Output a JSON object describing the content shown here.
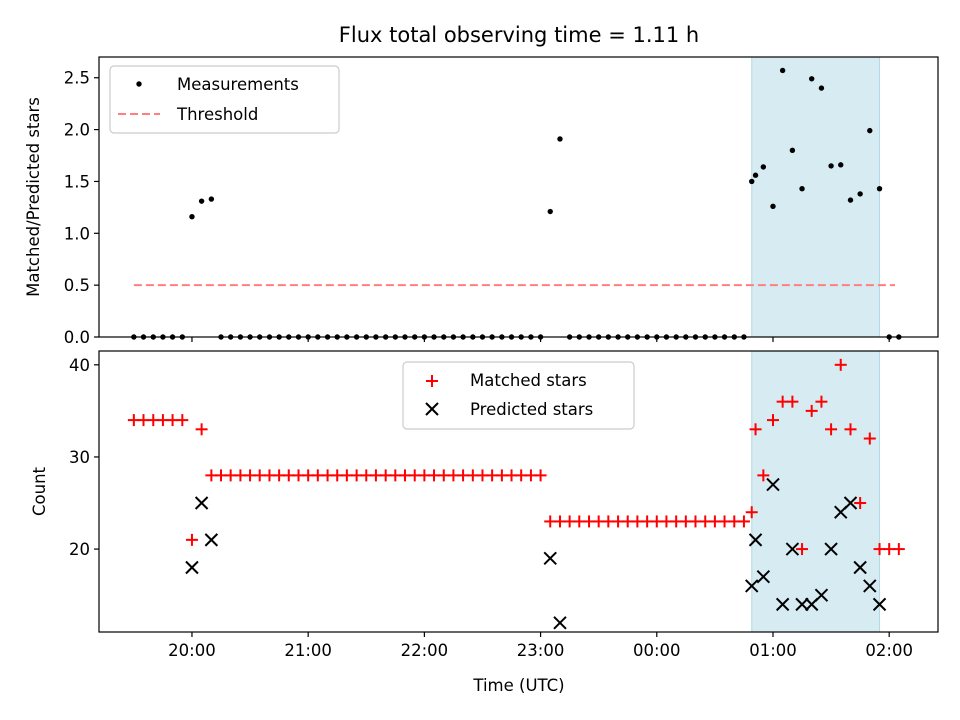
{
  "colors": {
    "measurement": "#000000",
    "threshold": "#ff7f7f",
    "matched": "#ff0000",
    "predicted": "#000000",
    "highlight": "#add8e6"
  },
  "chart_data": [
    {
      "type": "scatter",
      "title": "Flux total observing time = 1.11 h",
      "xlabel": "",
      "ylabel": "Matched/Predicted stars",
      "x_unit": "hours UTC (values past 24 are after midnight)",
      "xlim": [
        19.2,
        26.42
      ],
      "ylim": [
        0,
        2.7
      ],
      "yticks": [
        0.0,
        0.5,
        1.0,
        1.5,
        2.0,
        2.5
      ],
      "ytick_labels": [
        "0.0",
        "0.5",
        "1.0",
        "1.5",
        "2.0",
        "2.5"
      ],
      "xticks": [
        20,
        21,
        22,
        23,
        24,
        25,
        26
      ],
      "xtick_labels": [],
      "shaded_region": [
        24.817,
        25.917
      ],
      "legend": {
        "location": "upper-left",
        "entries": [
          "Measurements",
          "Threshold"
        ]
      },
      "series": [
        {
          "name": "Measurements",
          "marker": "dot",
          "points": [
            [
              19.5,
              0
            ],
            [
              19.583,
              0
            ],
            [
              19.667,
              0
            ],
            [
              19.75,
              0
            ],
            [
              19.833,
              0
            ],
            [
              19.917,
              0
            ],
            [
              20.0,
              1.16
            ],
            [
              20.083,
              1.31
            ],
            [
              20.167,
              1.33
            ],
            [
              20.25,
              0
            ],
            [
              20.333,
              0
            ],
            [
              20.417,
              0
            ],
            [
              20.5,
              0
            ],
            [
              20.583,
              0
            ],
            [
              20.667,
              0
            ],
            [
              20.75,
              0
            ],
            [
              20.833,
              0
            ],
            [
              20.917,
              0
            ],
            [
              21.0,
              0
            ],
            [
              21.083,
              0
            ],
            [
              21.167,
              0
            ],
            [
              21.25,
              0
            ],
            [
              21.333,
              0
            ],
            [
              21.417,
              0
            ],
            [
              21.5,
              0
            ],
            [
              21.583,
              0
            ],
            [
              21.667,
              0
            ],
            [
              21.75,
              0
            ],
            [
              21.833,
              0
            ],
            [
              21.917,
              0
            ],
            [
              22.0,
              0
            ],
            [
              22.083,
              0
            ],
            [
              22.167,
              0
            ],
            [
              22.25,
              0
            ],
            [
              22.333,
              0
            ],
            [
              22.417,
              0
            ],
            [
              22.5,
              0
            ],
            [
              22.583,
              0
            ],
            [
              22.667,
              0
            ],
            [
              22.75,
              0
            ],
            [
              22.833,
              0
            ],
            [
              22.917,
              0
            ],
            [
              23.0,
              0
            ],
            [
              23.083,
              1.21
            ],
            [
              23.167,
              1.91
            ],
            [
              23.25,
              0
            ],
            [
              23.333,
              0
            ],
            [
              23.417,
              0
            ],
            [
              23.5,
              0
            ],
            [
              23.583,
              0
            ],
            [
              23.667,
              0
            ],
            [
              23.75,
              0
            ],
            [
              23.833,
              0
            ],
            [
              23.917,
              0
            ],
            [
              24.0,
              0
            ],
            [
              24.083,
              0
            ],
            [
              24.167,
              0
            ],
            [
              24.25,
              0
            ],
            [
              24.333,
              0
            ],
            [
              24.417,
              0
            ],
            [
              24.5,
              0
            ],
            [
              24.583,
              0
            ],
            [
              24.667,
              0
            ],
            [
              24.75,
              0
            ],
            [
              24.817,
              1.5
            ],
            [
              24.85,
              1.56
            ],
            [
              24.917,
              1.64
            ],
            [
              25.0,
              1.26
            ],
            [
              25.083,
              2.57
            ],
            [
              25.167,
              1.8
            ],
            [
              25.25,
              1.43
            ],
            [
              25.333,
              2.49
            ],
            [
              25.417,
              2.4
            ],
            [
              25.5,
              1.65
            ],
            [
              25.583,
              1.66
            ],
            [
              25.667,
              1.32
            ],
            [
              25.75,
              1.38
            ],
            [
              25.833,
              1.99
            ],
            [
              25.917,
              1.43
            ],
            [
              26.0,
              0
            ],
            [
              26.083,
              0
            ]
          ]
        },
        {
          "name": "Threshold",
          "style": "dashed-line",
          "points": [
            [
              19.5,
              0.5
            ],
            [
              26.05,
              0.5
            ]
          ]
        }
      ]
    },
    {
      "type": "scatter",
      "title": "",
      "xlabel": "Time (UTC)",
      "ylabel": "Count",
      "x_unit": "hours UTC (values past 24 are after midnight)",
      "xlim": [
        19.2,
        26.42
      ],
      "ylim": [
        11,
        41.5
      ],
      "yticks": [
        20,
        30,
        40
      ],
      "ytick_labels": [
        "20",
        "30",
        "40"
      ],
      "xticks": [
        20,
        21,
        22,
        23,
        24,
        25,
        26
      ],
      "xtick_labels": [
        "20:00",
        "21:00",
        "22:00",
        "23:00",
        "00:00",
        "01:00",
        "02:00"
      ],
      "shaded_region": [
        24.817,
        25.917
      ],
      "legend": {
        "location": "upper-center",
        "entries": [
          "Matched stars",
          "Predicted stars"
        ]
      },
      "series": [
        {
          "name": "Matched stars",
          "marker": "plus",
          "points": [
            [
              19.5,
              34
            ],
            [
              19.583,
              34
            ],
            [
              19.667,
              34
            ],
            [
              19.75,
              34
            ],
            [
              19.833,
              34
            ],
            [
              19.917,
              34
            ],
            [
              20.0,
              21
            ],
            [
              20.083,
              33
            ],
            [
              20.167,
              28
            ],
            [
              20.25,
              28
            ],
            [
              20.333,
              28
            ],
            [
              20.417,
              28
            ],
            [
              20.5,
              28
            ],
            [
              20.583,
              28
            ],
            [
              20.667,
              28
            ],
            [
              20.75,
              28
            ],
            [
              20.833,
              28
            ],
            [
              20.917,
              28
            ],
            [
              21.0,
              28
            ],
            [
              21.083,
              28
            ],
            [
              21.167,
              28
            ],
            [
              21.25,
              28
            ],
            [
              21.333,
              28
            ],
            [
              21.417,
              28
            ],
            [
              21.5,
              28
            ],
            [
              21.583,
              28
            ],
            [
              21.667,
              28
            ],
            [
              21.75,
              28
            ],
            [
              21.833,
              28
            ],
            [
              21.917,
              28
            ],
            [
              22.0,
              28
            ],
            [
              22.083,
              28
            ],
            [
              22.167,
              28
            ],
            [
              22.25,
              28
            ],
            [
              22.333,
              28
            ],
            [
              22.417,
              28
            ],
            [
              22.5,
              28
            ],
            [
              22.583,
              28
            ],
            [
              22.667,
              28
            ],
            [
              22.75,
              28
            ],
            [
              22.833,
              28
            ],
            [
              22.917,
              28
            ],
            [
              23.0,
              28
            ],
            [
              23.083,
              23
            ],
            [
              23.167,
              23
            ],
            [
              23.25,
              23
            ],
            [
              23.333,
              23
            ],
            [
              23.417,
              23
            ],
            [
              23.5,
              23
            ],
            [
              23.583,
              23
            ],
            [
              23.667,
              23
            ],
            [
              23.75,
              23
            ],
            [
              23.833,
              23
            ],
            [
              23.917,
              23
            ],
            [
              24.0,
              23
            ],
            [
              24.083,
              23
            ],
            [
              24.167,
              23
            ],
            [
              24.25,
              23
            ],
            [
              24.333,
              23
            ],
            [
              24.417,
              23
            ],
            [
              24.5,
              23
            ],
            [
              24.583,
              23
            ],
            [
              24.667,
              23
            ],
            [
              24.75,
              23
            ],
            [
              24.817,
              24
            ],
            [
              24.85,
              33
            ],
            [
              24.917,
              28
            ],
            [
              25.0,
              34
            ],
            [
              25.083,
              36
            ],
            [
              25.167,
              36
            ],
            [
              25.25,
              20
            ],
            [
              25.333,
              35
            ],
            [
              25.417,
              36
            ],
            [
              25.5,
              33
            ],
            [
              25.583,
              40
            ],
            [
              25.667,
              33
            ],
            [
              25.75,
              25
            ],
            [
              25.833,
              32
            ],
            [
              25.917,
              20
            ],
            [
              26.0,
              20
            ],
            [
              26.083,
              20
            ]
          ]
        },
        {
          "name": "Predicted stars",
          "marker": "x",
          "points": [
            [
              20.0,
              18
            ],
            [
              20.083,
              25
            ],
            [
              20.167,
              21
            ],
            [
              23.083,
              19
            ],
            [
              23.167,
              12
            ],
            [
              24.817,
              16
            ],
            [
              24.85,
              21
            ],
            [
              24.917,
              17
            ],
            [
              25.0,
              27
            ],
            [
              25.083,
              14
            ],
            [
              25.167,
              20
            ],
            [
              25.25,
              14
            ],
            [
              25.333,
              14
            ],
            [
              25.417,
              15
            ],
            [
              25.5,
              20
            ],
            [
              25.583,
              24
            ],
            [
              25.667,
              25
            ],
            [
              25.75,
              18
            ],
            [
              25.833,
              16
            ],
            [
              25.917,
              14
            ]
          ]
        }
      ]
    }
  ]
}
